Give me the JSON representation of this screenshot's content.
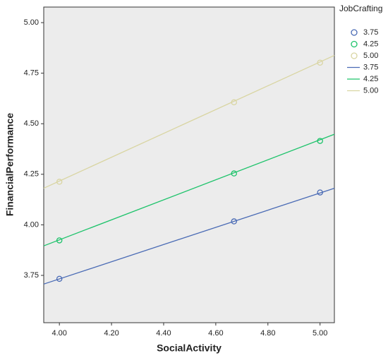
{
  "chart_data": {
    "type": "scatter",
    "x_label": "SocialActivity",
    "y_label": "FinancialPerformance",
    "legend_title": "JobCrafting",
    "xlim": [
      3.94,
      5.055
    ],
    "xticks": [
      {
        "value": 4,
        "label": "4.00"
      },
      {
        "value": 4.2,
        "label": "4.20"
      },
      {
        "value": 4.4,
        "label": "4.40"
      },
      {
        "value": 4.6,
        "label": "4.60"
      },
      {
        "value": 4.8,
        "label": "4.80"
      },
      {
        "value": 5,
        "label": "5.00"
      }
    ],
    "ylim": [
      3.516,
      5.077
    ],
    "yticks": [
      {
        "value": 3.75,
        "label": "3.75"
      },
      {
        "value": 4,
        "label": "4.00"
      },
      {
        "value": 4.25,
        "label": "4.25"
      },
      {
        "value": 4.5,
        "label": "4.50"
      },
      {
        "value": 4.75,
        "label": "4.75"
      },
      {
        "value": 5,
        "label": "5.00"
      }
    ],
    "series": [
      {
        "name": "3.75",
        "mode": "markers",
        "color": "#4a6bb5",
        "x": [
          4,
          4.67,
          5
        ],
        "values": [
          3.733,
          4.017,
          4.16
        ]
      },
      {
        "name": "4.25",
        "mode": "markers",
        "color": "#1ec36b",
        "x": [
          4,
          4.67,
          5
        ],
        "values": [
          3.923,
          4.254,
          4.415
        ]
      },
      {
        "name": "5.00",
        "mode": "markers",
        "color": "#d9d5a2",
        "x": [
          4,
          4.67,
          5
        ],
        "values": [
          4.213,
          4.606,
          4.802
        ]
      },
      {
        "name": "3.75",
        "mode": "line",
        "color": "#4a6bb5",
        "x": [
          3.94,
          5.055
        ],
        "values": [
          3.707,
          4.181
        ]
      },
      {
        "name": "4.25",
        "mode": "line",
        "color": "#1ec36b",
        "x": [
          3.94,
          5.055
        ],
        "values": [
          3.896,
          4.448
        ]
      },
      {
        "name": "5.00",
        "mode": "line",
        "color": "#d9d5a2",
        "x": [
          3.94,
          5.055
        ],
        "values": [
          4.181,
          4.838
        ]
      }
    ]
  }
}
